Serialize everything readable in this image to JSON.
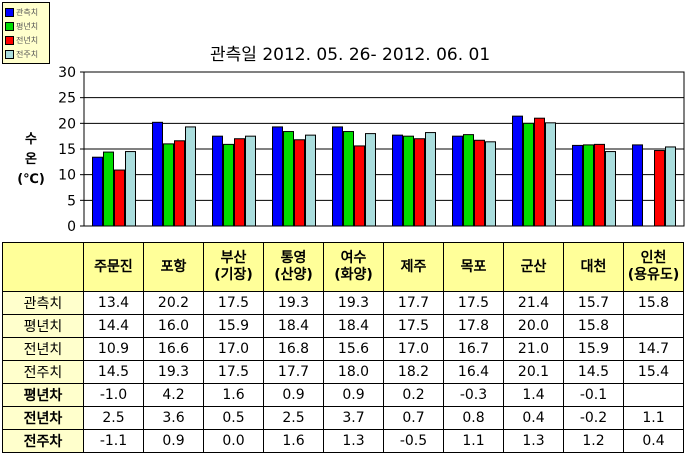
{
  "chart_data": {
    "type": "bar",
    "title": "관측일 2012. 05. 26-  2012. 06. 01",
    "ylabel_chars": [
      "수",
      "온",
      "(℃)"
    ],
    "ylim": [
      0,
      30
    ],
    "yticks": [
      0,
      5,
      10,
      15,
      20,
      25,
      30
    ],
    "grid": true,
    "legend_position": "top-left",
    "categories": [
      [
        "주문진"
      ],
      [
        "포항"
      ],
      [
        "부산",
        "(기장)"
      ],
      [
        "통영",
        "(산양)"
      ],
      [
        "여수",
        "(화양)"
      ],
      [
        "제주"
      ],
      [
        "목포"
      ],
      [
        "군산"
      ],
      [
        "대천"
      ],
      [
        "인천",
        "(용유도)"
      ]
    ],
    "series": [
      {
        "name": "관측치",
        "color": "#0000ff",
        "values": [
          13.4,
          20.2,
          17.5,
          19.3,
          19.3,
          17.7,
          17.5,
          21.4,
          15.7,
          15.8
        ]
      },
      {
        "name": "평년치",
        "color": "#00dd00",
        "values": [
          14.4,
          16.0,
          15.9,
          18.4,
          18.4,
          17.5,
          17.8,
          20.0,
          15.8,
          null
        ]
      },
      {
        "name": "전년치",
        "color": "#ff0000",
        "values": [
          10.9,
          16.6,
          17.0,
          16.8,
          15.6,
          17.0,
          16.7,
          21.0,
          15.9,
          14.7
        ]
      },
      {
        "name": "전주치",
        "color": "#aadddd",
        "values": [
          14.5,
          19.3,
          17.5,
          17.7,
          18.0,
          18.2,
          16.4,
          20.1,
          14.5,
          15.4
        ]
      }
    ],
    "table_rows": [
      {
        "label": "관측치",
        "bold": false,
        "values": [
          "13.4",
          "20.2",
          "17.5",
          "19.3",
          "19.3",
          "17.7",
          "17.5",
          "21.4",
          "15.7",
          "15.8"
        ]
      },
      {
        "label": "평년치",
        "bold": false,
        "values": [
          "14.4",
          "16.0",
          "15.9",
          "18.4",
          "18.4",
          "17.5",
          "17.8",
          "20.0",
          "15.8",
          ""
        ]
      },
      {
        "label": "전년치",
        "bold": false,
        "values": [
          "10.9",
          "16.6",
          "17.0",
          "16.8",
          "15.6",
          "17.0",
          "16.7",
          "21.0",
          "15.9",
          "14.7"
        ]
      },
      {
        "label": "전주치",
        "bold": false,
        "values": [
          "14.5",
          "19.3",
          "17.5",
          "17.7",
          "18.0",
          "18.2",
          "16.4",
          "20.1",
          "14.5",
          "15.4"
        ]
      },
      {
        "label": "평년차",
        "bold": true,
        "values": [
          "-1.0",
          "4.2",
          "1.6",
          "0.9",
          "0.9",
          "0.2",
          "-0.3",
          "1.4",
          "-0.1",
          ""
        ]
      },
      {
        "label": "전년차",
        "bold": true,
        "values": [
          "2.5",
          "3.6",
          "0.5",
          "2.5",
          "3.7",
          "0.7",
          "0.8",
          "0.4",
          "-0.2",
          "1.1"
        ]
      },
      {
        "label": "전주차",
        "bold": true,
        "values": [
          "-1.1",
          "0.9",
          "0.0",
          "1.6",
          "1.3",
          "-0.5",
          "1.1",
          "1.3",
          "1.2",
          "0.4"
        ]
      }
    ]
  }
}
